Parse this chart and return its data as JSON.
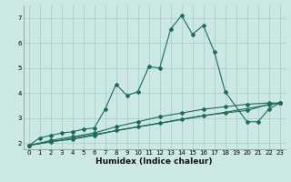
{
  "xlabel": "Humidex (Indice chaleur)",
  "bg_color": "#cce8e4",
  "grid_color": "#aacfcb",
  "line_color": "#1a6b60",
  "xlim": [
    -0.5,
    23.5
  ],
  "ylim": [
    1.75,
    7.5
  ],
  "xticks": [
    0,
    1,
    2,
    3,
    4,
    5,
    6,
    7,
    8,
    9,
    10,
    11,
    12,
    13,
    14,
    15,
    16,
    17,
    18,
    19,
    20,
    21,
    22,
    23
  ],
  "yticks": [
    2,
    3,
    4,
    5,
    6,
    7
  ],
  "series1_x": [
    0,
    1,
    2,
    3,
    4,
    5,
    6,
    7,
    8,
    9,
    10,
    11,
    12,
    13,
    14,
    15,
    16,
    17,
    18,
    20,
    21,
    22,
    23
  ],
  "series1_y": [
    1.9,
    2.2,
    2.3,
    2.4,
    2.45,
    2.55,
    2.6,
    3.35,
    4.35,
    3.9,
    4.05,
    5.05,
    5.0,
    6.55,
    7.1,
    6.35,
    6.7,
    5.65,
    4.05,
    2.85,
    2.85,
    3.35,
    3.6
  ],
  "series2_x": [
    0,
    23
  ],
  "series2_y": [
    1.9,
    3.6
  ],
  "series3_x": [
    0,
    2,
    4,
    6,
    8,
    10,
    12,
    14,
    16,
    18,
    20,
    22,
    23
  ],
  "series3_y": [
    1.9,
    2.1,
    2.25,
    2.4,
    2.65,
    2.85,
    3.05,
    3.2,
    3.35,
    3.45,
    3.55,
    3.6,
    3.6
  ],
  "series4_x": [
    0,
    2,
    4,
    6,
    8,
    10,
    12,
    14,
    16,
    18,
    20,
    22,
    23
  ],
  "series4_y": [
    1.9,
    2.05,
    2.15,
    2.3,
    2.5,
    2.65,
    2.8,
    2.95,
    3.1,
    3.2,
    3.3,
    3.55,
    3.6
  ]
}
